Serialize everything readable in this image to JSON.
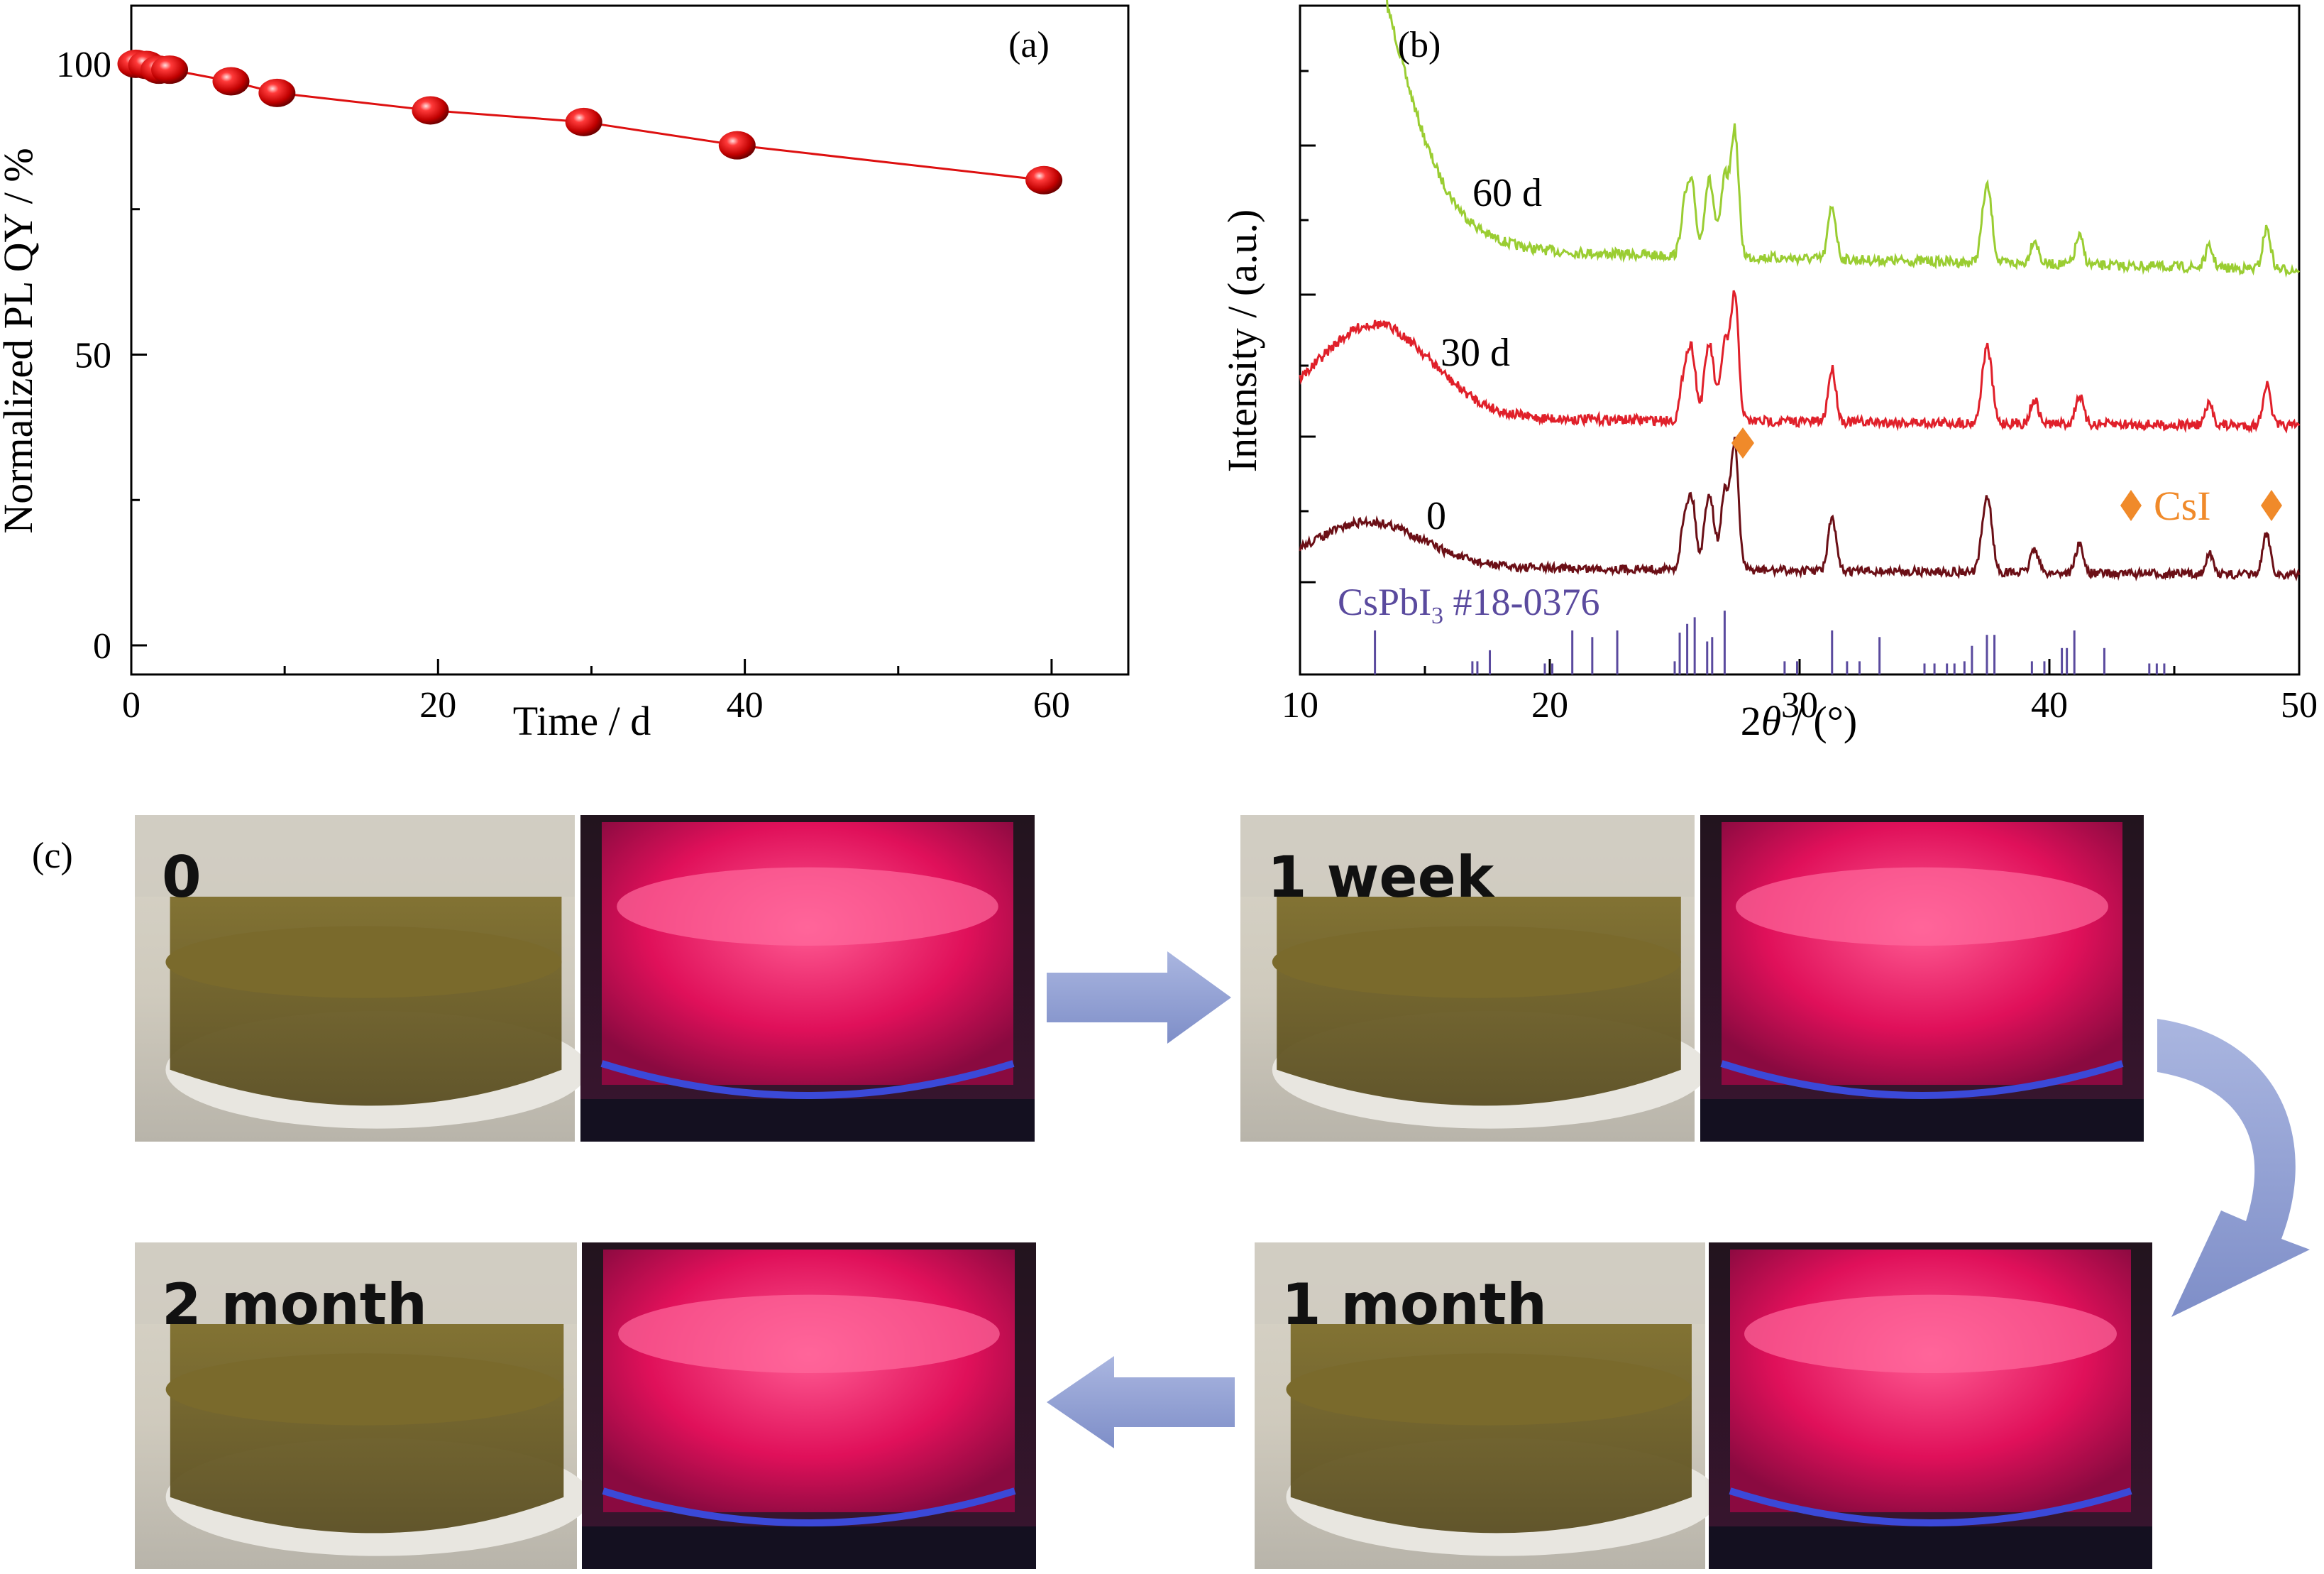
{
  "chart_data": [
    {
      "type": "scatter",
      "panel_label": "(a)",
      "xlabel": "Time / d",
      "ylabel": "Normalized PL QY / %",
      "xlim": [
        0,
        65
      ],
      "ylim": [
        -5,
        110
      ],
      "xticks": [
        0,
        20,
        40,
        60
      ],
      "yticks": [
        0,
        50,
        100
      ],
      "grid": false,
      "series": [
        {
          "x": [
            0.3,
            1,
            1.8,
            2.5,
            6.5,
            9.5,
            19.5,
            29.5,
            39.5,
            59.5
          ],
          "y": [
            100,
            99.8,
            99,
            99,
            97,
            95,
            92,
            90,
            86,
            80
          ],
          "color": "#dd1010"
        }
      ]
    },
    {
      "type": "line",
      "panel_label": "(b)",
      "xlabel": "2θ / (°)",
      "xlabel_italic": "θ",
      "ylabel": "Intensity / (a.u.)",
      "xlim": [
        10,
        50
      ],
      "xticks": [
        10,
        20,
        30,
        40,
        50
      ],
      "grid": false,
      "series": [
        {
          "name": "60 d",
          "color": "#9acd32"
        },
        {
          "name": "30 d",
          "color": "#e0202a"
        },
        {
          "name": "0",
          "color": "#6b0f16"
        }
      ],
      "peaks": [
        {
          "x": 25.4,
          "h": 1.2
        },
        {
          "x": 25.7,
          "h": 1.6
        },
        {
          "x": 26.3,
          "h": 1.3
        },
        {
          "x": 26.5,
          "h": 1.0
        },
        {
          "x": 27.0,
          "h": 1.9
        },
        {
          "x": 27.4,
          "h": 3.1
        },
        {
          "x": 31.3,
          "h": 1.3
        },
        {
          "x": 37.4,
          "h": 1.1
        },
        {
          "x": 37.6,
          "h": 1.2
        },
        {
          "x": 39.4,
          "h": 0.6
        },
        {
          "x": 41.2,
          "h": 0.7
        },
        {
          "x": 46.4,
          "h": 0.5
        },
        {
          "x": 48.7,
          "h": 1.0
        }
      ],
      "reference": {
        "label": "CsPbI",
        "label_sub": "3",
        "label_suffix": " #18-0376",
        "color": "#5a4a9e",
        "lines": [
          {
            "x": 13.0,
            "h": 1.0
          },
          {
            "x": 16.9,
            "h": 0.3
          },
          {
            "x": 17.1,
            "h": 0.3
          },
          {
            "x": 17.6,
            "h": 0.55
          },
          {
            "x": 19.8,
            "h": 0.25
          },
          {
            "x": 20.1,
            "h": 0.25
          },
          {
            "x": 20.9,
            "h": 1.0
          },
          {
            "x": 21.7,
            "h": 0.85
          },
          {
            "x": 22.7,
            "h": 1.0
          },
          {
            "x": 25.0,
            "h": 0.3
          },
          {
            "x": 25.2,
            "h": 0.95
          },
          {
            "x": 25.5,
            "h": 1.15
          },
          {
            "x": 25.8,
            "h": 1.3
          },
          {
            "x": 26.3,
            "h": 0.75
          },
          {
            "x": 26.5,
            "h": 0.85
          },
          {
            "x": 27.0,
            "h": 1.45
          },
          {
            "x": 29.4,
            "h": 0.3
          },
          {
            "x": 29.9,
            "h": 0.3
          },
          {
            "x": 31.3,
            "h": 1.0
          },
          {
            "x": 31.9,
            "h": 0.3
          },
          {
            "x": 32.4,
            "h": 0.3
          },
          {
            "x": 33.2,
            "h": 0.85
          },
          {
            "x": 35.0,
            "h": 0.25
          },
          {
            "x": 35.4,
            "h": 0.25
          },
          {
            "x": 35.9,
            "h": 0.25
          },
          {
            "x": 36.2,
            "h": 0.25
          },
          {
            "x": 36.6,
            "h": 0.3
          },
          {
            "x": 36.9,
            "h": 0.65
          },
          {
            "x": 37.5,
            "h": 0.9
          },
          {
            "x": 37.8,
            "h": 0.9
          },
          {
            "x": 39.3,
            "h": 0.3
          },
          {
            "x": 39.8,
            "h": 0.3
          },
          {
            "x": 40.5,
            "h": 0.6
          },
          {
            "x": 40.7,
            "h": 0.6
          },
          {
            "x": 41.0,
            "h": 1.0
          },
          {
            "x": 42.2,
            "h": 0.6
          },
          {
            "x": 44.0,
            "h": 0.25
          },
          {
            "x": 44.3,
            "h": 0.25
          },
          {
            "x": 44.6,
            "h": 0.25
          }
        ]
      },
      "csi_marker": {
        "label": "CsI",
        "color": "#f08a2a",
        "x": 27.8
      }
    }
  ],
  "panel_c": {
    "label": "(c)",
    "photos": [
      {
        "caption": "0"
      },
      {
        "caption": "1 week"
      },
      {
        "caption": "1 month"
      },
      {
        "caption": "2 month"
      }
    ]
  }
}
